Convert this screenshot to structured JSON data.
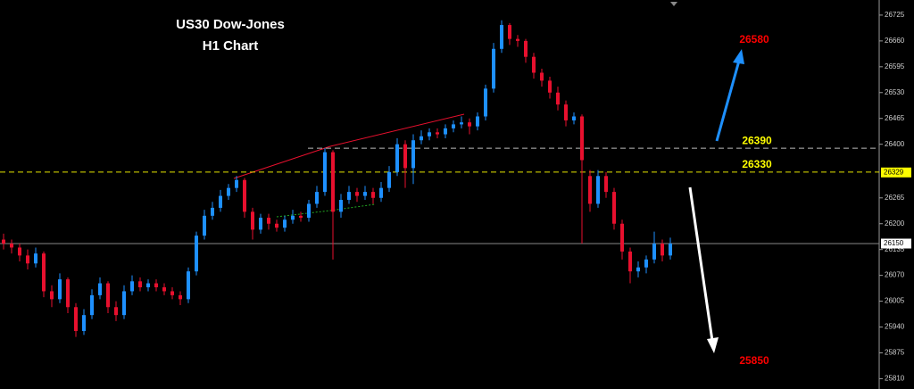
{
  "chart_data": {
    "type": "candlestick",
    "title": "US30 Dow-Jones",
    "subtitle": "H1 Chart",
    "up_color": "#1e90ff",
    "down_color": "#e8102e",
    "ylim": [
      25784,
      26763
    ],
    "yticks": [
      26725,
      26660,
      26595,
      26530,
      26465,
      26400,
      26265,
      26200,
      26135,
      26070,
      26005,
      25940,
      25875,
      25810
    ],
    "open": [
      26160,
      26150,
      26140,
      26120,
      26100,
      26125,
      26030,
      26010,
      26060,
      25990,
      25930,
      25970,
      26020,
      26050,
      25990,
      25970,
      26030,
      26055,
      26040,
      26050,
      26040,
      26030,
      26020,
      26010,
      26080,
      26170,
      26220,
      26240,
      26270,
      26290,
      26310,
      26230,
      26185,
      26215,
      26200,
      26190,
      26210,
      26220,
      26215,
      26250,
      26280,
      26380,
      26230,
      26260,
      26280,
      26270,
      26280,
      26265,
      26290,
      26330,
      26400,
      26340,
      26410,
      26420,
      26430,
      26425,
      26440,
      26450,
      26455,
      26445,
      26470,
      26540,
      26640,
      26700,
      26665,
      26660,
      26620,
      26580,
      26560,
      26530,
      26500,
      26460,
      26470,
      26320,
      26250,
      26320,
      26280,
      26200,
      26130,
      26080,
      26090,
      26110,
      26150,
      26120
    ],
    "high": [
      26175,
      26160,
      26150,
      26135,
      26140,
      26130,
      26045,
      26075,
      26065,
      26000,
      25985,
      26035,
      26065,
      26055,
      26005,
      26045,
      26070,
      26065,
      26060,
      26060,
      26050,
      26040,
      26030,
      26090,
      26180,
      26235,
      26255,
      26285,
      26300,
      26320,
      26315,
      26240,
      26225,
      26225,
      26210,
      26220,
      26235,
      26230,
      26260,
      26295,
      26390,
      26385,
      26275,
      26295,
      26290,
      26295,
      26290,
      26305,
      26345,
      26415,
      26410,
      26425,
      26435,
      26440,
      26440,
      26450,
      26460,
      26470,
      26465,
      26480,
      26550,
      26655,
      26712,
      26705,
      26675,
      26665,
      26630,
      26590,
      26570,
      26545,
      26510,
      26480,
      26475,
      26335,
      26335,
      26330,
      26290,
      26210,
      26140,
      26105,
      26120,
      26180,
      26160,
      26165
    ],
    "low": [
      26135,
      26125,
      26105,
      26085,
      26090,
      26015,
      25990,
      26000,
      25975,
      25915,
      25920,
      25960,
      26010,
      25975,
      25955,
      25960,
      26020,
      26030,
      26030,
      26030,
      26020,
      26010,
      25995,
      26000,
      26070,
      26160,
      26210,
      26230,
      26260,
      26280,
      26215,
      26160,
      26175,
      26185,
      26180,
      26180,
      26200,
      26205,
      26205,
      26240,
      26270,
      26110,
      26215,
      26250,
      26255,
      26260,
      26250,
      26255,
      26280,
      26320,
      26290,
      26300,
      26400,
      26410,
      26415,
      26415,
      26430,
      26440,
      26425,
      26435,
      26460,
      26530,
      26630,
      26650,
      26645,
      26605,
      26565,
      26545,
      26515,
      26485,
      26445,
      26450,
      26150,
      26230,
      26240,
      26265,
      26185,
      26110,
      26050,
      26065,
      26075,
      26100,
      26105,
      26110
    ],
    "close": [
      26150,
      26140,
      26120,
      26100,
      26125,
      26030,
      26010,
      26060,
      25990,
      25930,
      25970,
      26020,
      26050,
      25990,
      25970,
      26030,
      26055,
      26040,
      26050,
      26040,
      26030,
      26020,
      26010,
      26080,
      26170,
      26220,
      26240,
      26270,
      26290,
      26310,
      26230,
      26185,
      26215,
      26200,
      26190,
      26210,
      26220,
      26215,
      26250,
      26280,
      26380,
      26230,
      26260,
      26280,
      26270,
      26280,
      26265,
      26290,
      26330,
      26400,
      26340,
      26410,
      26420,
      26430,
      26425,
      26440,
      26450,
      26455,
      26445,
      26470,
      26540,
      26640,
      26700,
      26665,
      26660,
      26620,
      26580,
      26560,
      26530,
      26500,
      26460,
      26470,
      26360,
      26250,
      26320,
      26280,
      26200,
      26130,
      26080,
      26090,
      26110,
      26150,
      26120,
      26150
    ],
    "levels": [
      {
        "value": 26390,
        "line_color": "#bbbbbb",
        "label_color": "#ffff00"
      },
      {
        "value": 26330,
        "line_color": "#e6e600",
        "label_color": "#ffff00"
      }
    ],
    "targets": [
      {
        "value": 26580,
        "color": "#ff0000"
      },
      {
        "value": 25850,
        "color": "#ff0000"
      }
    ],
    "price_tags": [
      {
        "value": 26329,
        "color": "#ffff00"
      },
      {
        "value": 26150,
        "color": "#ffffff",
        "line_color": "#888888"
      }
    ]
  }
}
